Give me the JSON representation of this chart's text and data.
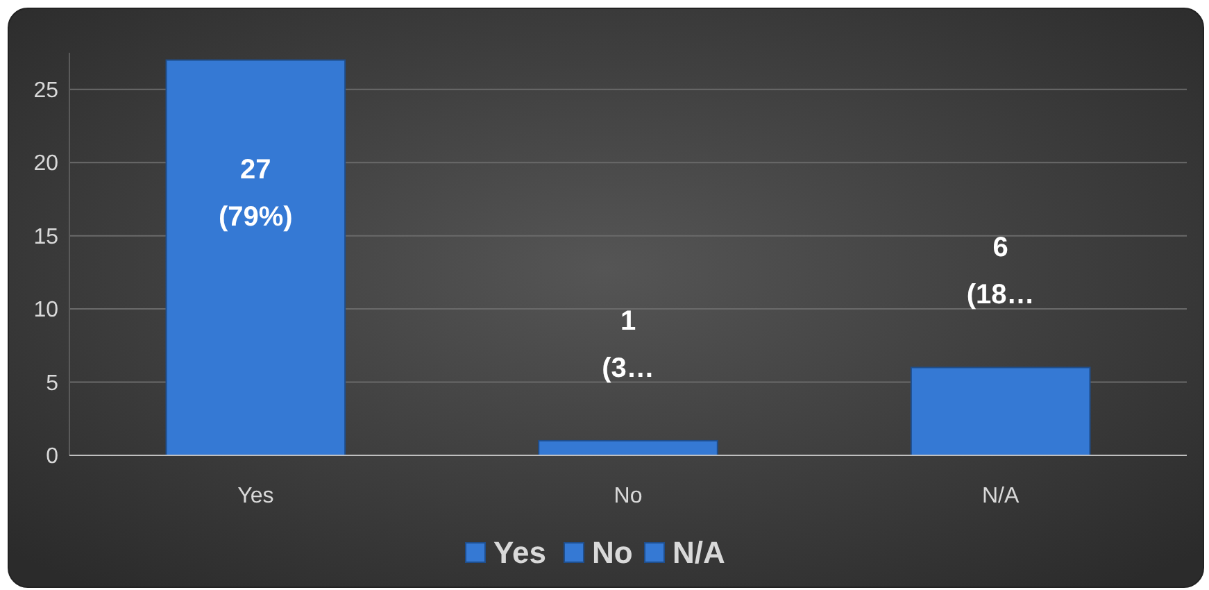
{
  "chart_data": {
    "type": "bar",
    "categories": [
      "Yes",
      "No",
      "N/A"
    ],
    "stacked": true,
    "series": [
      {
        "name": "Yes",
        "color": "#3579d4",
        "values": [
          27,
          null,
          null
        ],
        "value_labels": [
          "27 (79%)",
          null,
          null
        ]
      },
      {
        "name": "No",
        "color": "#3579d4",
        "values": [
          null,
          1,
          null
        ],
        "value_labels": [
          null,
          "1 (3…",
          null
        ]
      },
      {
        "name": "N/A",
        "color": "#3579d4",
        "values": [
          null,
          null,
          6
        ],
        "value_labels": [
          null,
          null,
          "6 (18…"
        ]
      }
    ],
    "ylim": [
      0,
      27.5
    ],
    "yticks": [
      0,
      5,
      10,
      15,
      20,
      25
    ],
    "grid": "y",
    "legend": "bottom"
  }
}
